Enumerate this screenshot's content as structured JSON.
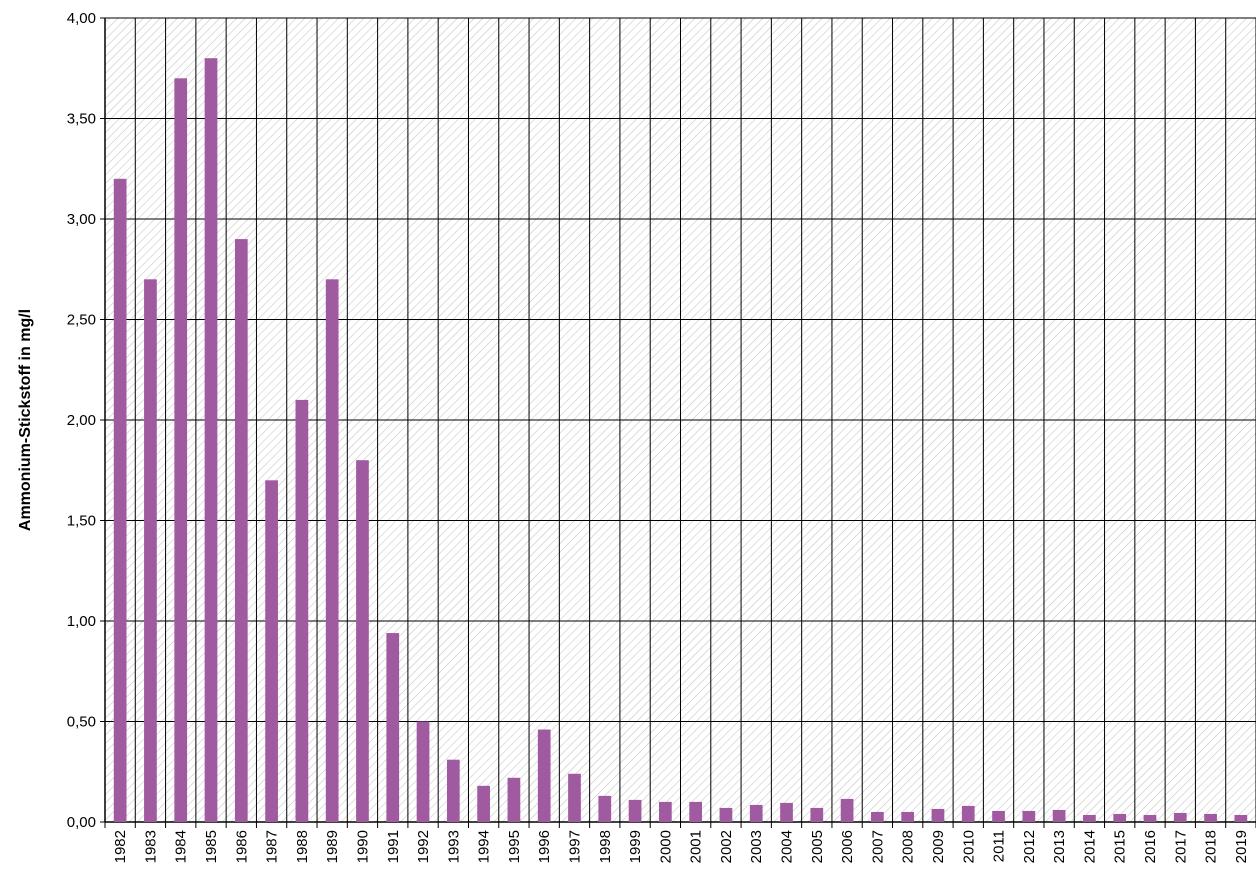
{
  "chart_data": {
    "type": "bar",
    "title": "",
    "xlabel": "",
    "ylabel": "Ammonium-Stickstoff in mg/l",
    "ylim": [
      0,
      4
    ],
    "yticks": [
      "0,00",
      "0,50",
      "1,00",
      "1,50",
      "2,00",
      "2,50",
      "3,00",
      "3,50",
      "4,00"
    ],
    "grid": true,
    "legend": "none",
    "bar_color": "#A05AA0",
    "hatch_color": "#c4c4c4",
    "categories": [
      "1982",
      "1983",
      "1984",
      "1985",
      "1986",
      "1987",
      "1988",
      "1989",
      "1990",
      "1991",
      "1992",
      "1993",
      "1994",
      "1995",
      "1996",
      "1997",
      "1998",
      "1999",
      "2000",
      "2001",
      "2002",
      "2003",
      "2004",
      "2005",
      "2006",
      "2007",
      "2008",
      "2009",
      "2010",
      "2011",
      "2012",
      "2013",
      "2014",
      "2015",
      "2016",
      "2017",
      "2018",
      "2019"
    ],
    "values": [
      3.2,
      2.7,
      3.7,
      3.8,
      2.9,
      1.7,
      2.1,
      2.7,
      1.8,
      0.94,
      0.5,
      0.31,
      0.18,
      0.22,
      0.46,
      0.24,
      0.13,
      0.11,
      0.1,
      0.1,
      0.07,
      0.085,
      0.095,
      0.07,
      0.115,
      0.05,
      0.05,
      0.065,
      0.08,
      0.055,
      0.055,
      0.06,
      0.035,
      0.04,
      0.035,
      0.045,
      0.04,
      0.035
    ]
  }
}
